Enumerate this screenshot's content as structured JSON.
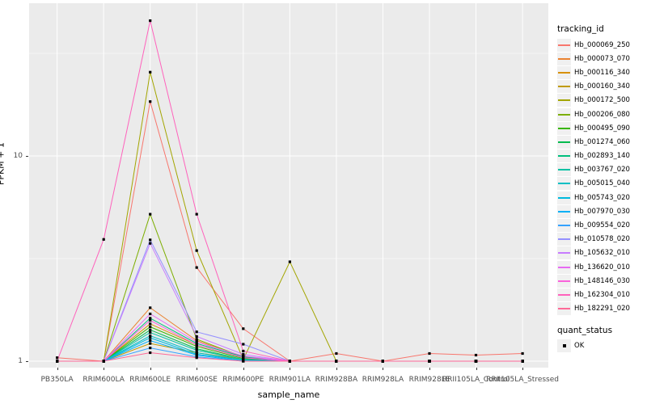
{
  "y_axis": {
    "label": "FPKM + 1",
    "ticks": [
      {
        "label": "1",
        "value": 1
      },
      {
        "label": "10",
        "value": 10
      }
    ],
    "minor_values": [
      3.162,
      31.62
    ]
  },
  "x_axis": {
    "label": "sample_name"
  },
  "legend": {
    "tracking_title": "tracking_id",
    "quant_title": "quant_status",
    "quant_entries": [
      {
        "label": "OK",
        "shape": "filled-black-square"
      }
    ]
  },
  "panel_style": {
    "background": "#EBEBEB",
    "grid_color": "#FFFFFF",
    "point_color": "#000000",
    "tick_color": "#333333",
    "tick_label_color": "#4D4D4D"
  },
  "chart_data": {
    "type": "line",
    "title": "",
    "xlabel": "sample_name",
    "ylabel": "FPKM + 1",
    "y_scale": "log10",
    "ylim": [
      0.93,
      55
    ],
    "y_ticks": [
      1,
      10
    ],
    "grid": true,
    "legend_position": "right",
    "point_shape": "filled-square",
    "categories": [
      "PB350LA",
      "RRIM600LA",
      "RRIM600LE",
      "RRIM600SE",
      "RRIM600PE",
      "RRIM901LA",
      "RRIM928BA",
      "RRIM928LA",
      "RRIM928LE",
      "RRII105LA_Control",
      "RRII105LA_Stressed"
    ],
    "series": [
      {
        "name": "Hb_000069_250",
        "color": "#F8766D",
        "values": [
          1.04,
          1.0,
          18.4,
          2.86,
          1.44,
          1.0,
          1.09,
          1.0,
          1.09,
          1.07,
          1.09
        ]
      },
      {
        "name": "Hb_000073_070",
        "color": "#EA8331",
        "values": [
          1.0,
          1.0,
          1.82,
          1.26,
          1.05,
          1.0,
          1.0,
          1.0,
          1.0,
          1.0,
          1.0
        ]
      },
      {
        "name": "Hb_000116_340",
        "color": "#D89000",
        "values": [
          1.0,
          1.0,
          1.52,
          1.2,
          1.04,
          1.0,
          1.0,
          1.0,
          1.0,
          1.0,
          1.0
        ]
      },
      {
        "name": "Hb_000160_340",
        "color": "#C09B00",
        "values": [
          1.0,
          1.0,
          1.22,
          1.1,
          1.02,
          1.0,
          1.0,
          1.0,
          1.0,
          1.0,
          1.0
        ]
      },
      {
        "name": "Hb_000172_500",
        "color": "#A3A500",
        "values": [
          1.0,
          1.0,
          25.6,
          3.46,
          1.02,
          3.05,
          1.0,
          1.0,
          1.0,
          1.0,
          1.0
        ]
      },
      {
        "name": "Hb_000206_080",
        "color": "#7CAE00",
        "values": [
          1.0,
          1.0,
          5.2,
          1.28,
          1.05,
          1.0,
          1.0,
          1.0,
          1.0,
          1.0,
          1.0
        ]
      },
      {
        "name": "Hb_000495_090",
        "color": "#39B600",
        "values": [
          1.0,
          1.0,
          1.47,
          1.18,
          1.03,
          1.0,
          1.0,
          1.0,
          1.0,
          1.0,
          1.0
        ]
      },
      {
        "name": "Hb_001274_060",
        "color": "#00BB4E",
        "values": [
          1.0,
          1.0,
          1.42,
          1.15,
          1.02,
          1.0,
          1.0,
          1.0,
          1.0,
          1.0,
          1.0
        ]
      },
      {
        "name": "Hb_002893_140",
        "color": "#00BF7D",
        "values": [
          1.0,
          1.0,
          1.62,
          1.22,
          1.05,
          1.0,
          1.0,
          1.0,
          1.0,
          1.0,
          1.0
        ]
      },
      {
        "name": "Hb_003767_020",
        "color": "#00C1A3",
        "values": [
          1.0,
          1.0,
          1.38,
          1.13,
          1.02,
          1.0,
          1.0,
          1.0,
          1.0,
          1.0,
          1.0
        ]
      },
      {
        "name": "Hb_005015_040",
        "color": "#00BFC4",
        "values": [
          1.0,
          1.0,
          1.33,
          1.1,
          1.01,
          1.0,
          1.0,
          1.0,
          1.0,
          1.0,
          1.0
        ]
      },
      {
        "name": "Hb_005743_020",
        "color": "#00BADE",
        "values": [
          1.0,
          1.0,
          1.3,
          1.08,
          1.01,
          1.0,
          1.0,
          1.0,
          1.0,
          1.0,
          1.0
        ]
      },
      {
        "name": "Hb_007970_030",
        "color": "#00B0F6",
        "values": [
          1.0,
          1.0,
          1.26,
          1.07,
          1.0,
          1.0,
          1.0,
          1.0,
          1.0,
          1.0,
          1.0
        ]
      },
      {
        "name": "Hb_009554_020",
        "color": "#35A2FF",
        "values": [
          1.0,
          1.0,
          1.16,
          1.05,
          1.0,
          1.0,
          1.0,
          1.0,
          1.0,
          1.0,
          1.0
        ]
      },
      {
        "name": "Hb_010578_020",
        "color": "#9590FF",
        "values": [
          1.0,
          1.0,
          3.9,
          1.39,
          1.21,
          1.0,
          1.0,
          1.0,
          1.0,
          1.0,
          1.0
        ]
      },
      {
        "name": "Hb_105632_010",
        "color": "#C77CFF",
        "values": [
          1.0,
          1.0,
          3.75,
          1.32,
          1.08,
          1.0,
          1.0,
          1.0,
          1.0,
          1.0,
          1.0
        ]
      },
      {
        "name": "Hb_136620_010",
        "color": "#E76BF3",
        "values": [
          1.0,
          1.0,
          1.7,
          1.24,
          1.06,
          1.0,
          1.0,
          1.0,
          1.0,
          1.0,
          1.0
        ]
      },
      {
        "name": "Hb_148146_030",
        "color": "#FA62DB",
        "values": [
          1.0,
          1.0,
          1.58,
          1.2,
          1.04,
          1.0,
          1.0,
          1.0,
          1.0,
          1.0,
          1.0
        ]
      },
      {
        "name": "Hb_162304_010",
        "color": "#FF62BC",
        "values": [
          1.0,
          3.92,
          45.6,
          5.2,
          1.12,
          1.0,
          1.0,
          1.0,
          1.0,
          1.0,
          1.0
        ]
      },
      {
        "name": "Hb_182291_020",
        "color": "#FF6A98",
        "values": [
          1.0,
          1.0,
          1.1,
          1.04,
          1.0,
          1.0,
          1.0,
          1.0,
          1.0,
          1.0,
          1.0
        ]
      }
    ],
    "quant_status_all_points": "OK"
  }
}
